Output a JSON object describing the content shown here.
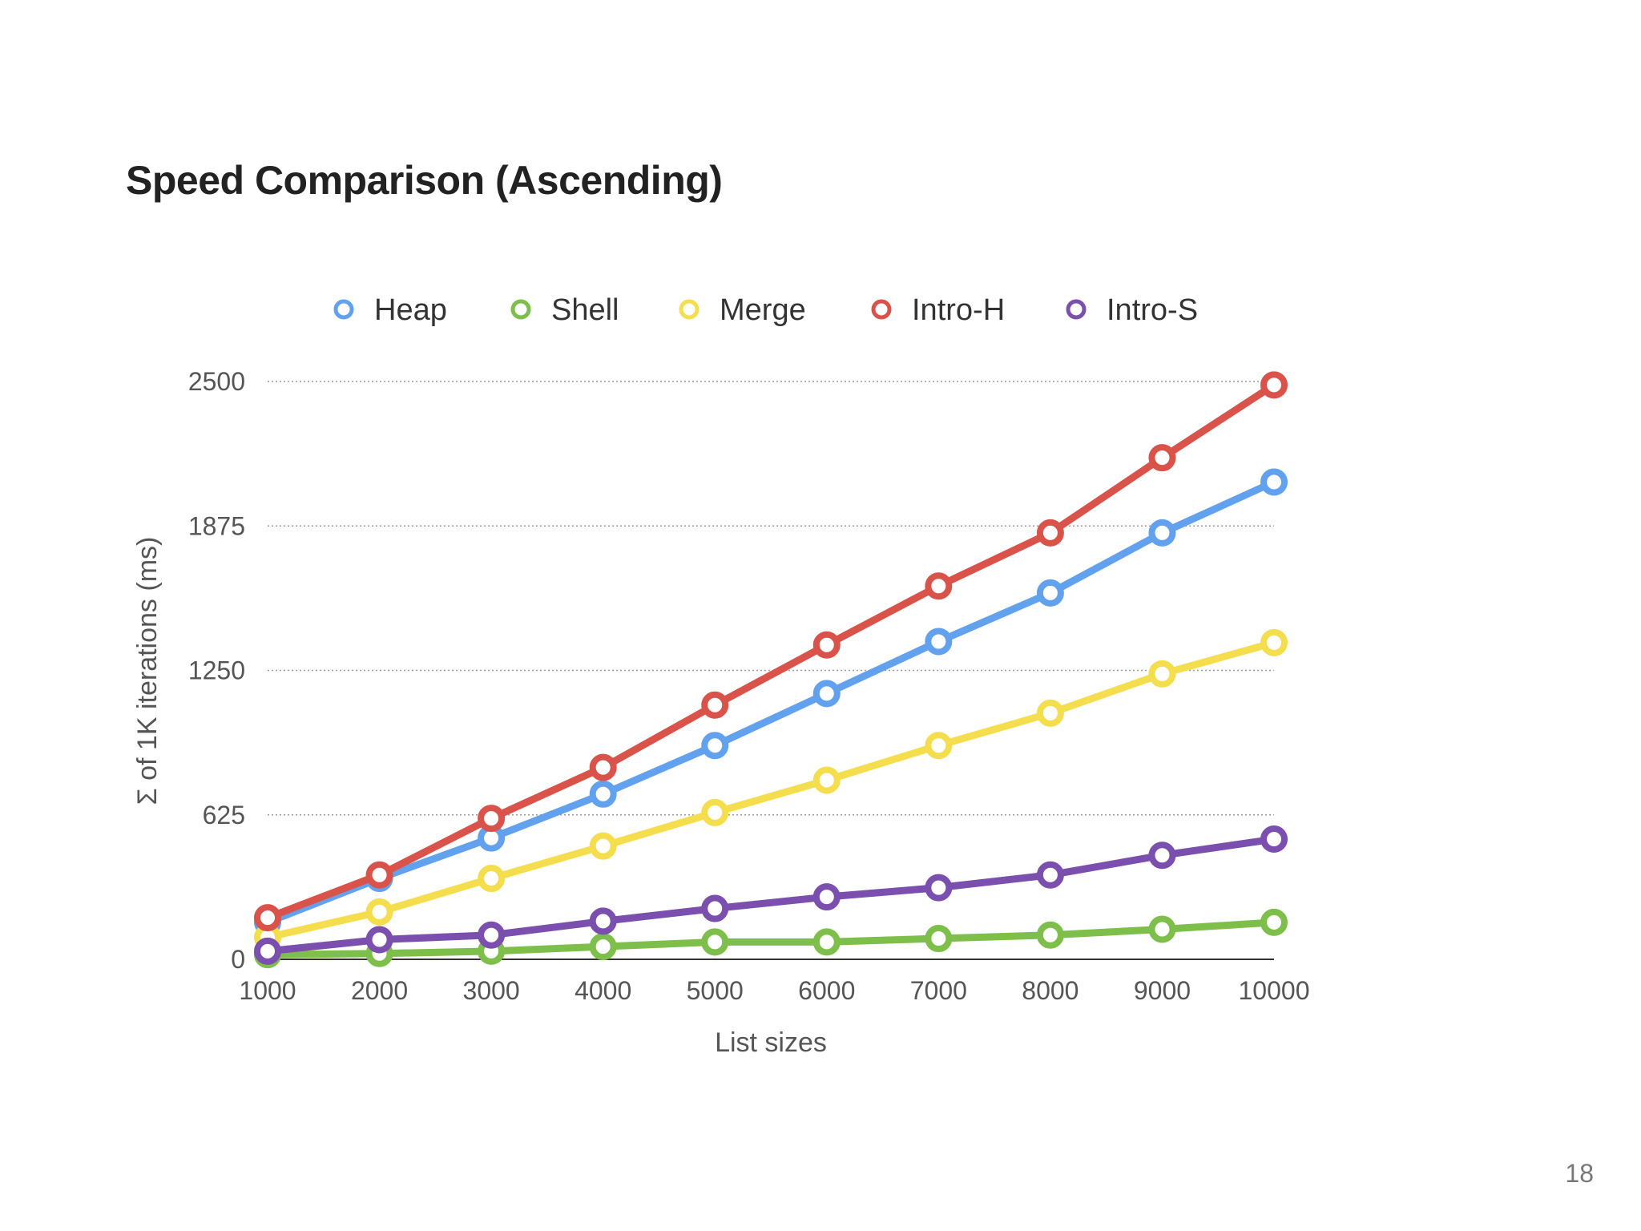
{
  "slide": {
    "title": "Speed Comparison (Ascending)",
    "page_number": "18"
  },
  "chart_data": {
    "type": "line",
    "title": "",
    "xlabel": "List sizes",
    "ylabel": "Σ of 1K iterations (ms)",
    "x": [
      1000,
      2000,
      3000,
      4000,
      5000,
      6000,
      7000,
      8000,
      9000,
      10000
    ],
    "x_tick_labels": [
      "1000",
      "2000",
      "3000",
      "4000",
      "5000",
      "6000",
      "7000",
      "8000",
      "9000",
      "10000"
    ],
    "ylim": [
      0,
      2500
    ],
    "y_ticks": [
      0,
      625,
      1250,
      1875,
      2500
    ],
    "y_tick_labels": [
      "0",
      "625",
      "1250",
      "1875",
      "2500"
    ],
    "grid": true,
    "legend_position": "top",
    "series": [
      {
        "name": "Heap",
        "color": "#62a1ee",
        "values": [
          160,
          350,
          525,
          715,
          925,
          1150,
          1375,
          1585,
          1845,
          2065
        ]
      },
      {
        "name": "Shell",
        "color": "#7ebe4b",
        "values": [
          20,
          25,
          35,
          55,
          75,
          75,
          90,
          105,
          130,
          160
        ]
      },
      {
        "name": "Merge",
        "color": "#f4de4e",
        "values": [
          95,
          205,
          350,
          490,
          635,
          775,
          925,
          1065,
          1235,
          1370
        ]
      },
      {
        "name": "Intro-H",
        "color": "#d9534a",
        "values": [
          180,
          365,
          610,
          830,
          1100,
          1360,
          1615,
          1845,
          2170,
          2485
        ]
      },
      {
        "name": "Intro-S",
        "color": "#7a4fae",
        "values": [
          35,
          85,
          105,
          165,
          220,
          270,
          310,
          365,
          450,
          520
        ]
      }
    ]
  }
}
